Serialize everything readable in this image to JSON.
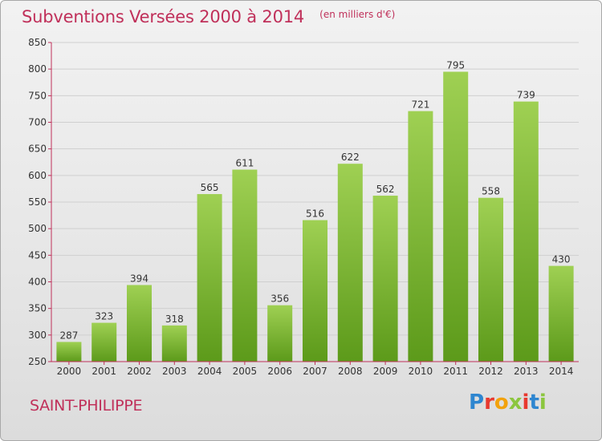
{
  "title": "Subventions Versées 2000 à 2014",
  "subtitle": "(en milliers d'€)",
  "commune": "SAINT-PHILIPPE",
  "logo": {
    "text": "Proxiti",
    "letter_colors": [
      "#2e86d0",
      "#e8392f",
      "#f2a20c",
      "#8cc63f",
      "#e8392f",
      "#2e86d0",
      "#8cc63f"
    ]
  },
  "colors": {
    "bar_top": "#9fd053",
    "bar_bottom": "#5c9a1a",
    "axis": "#c0305a",
    "title": "#c0305a"
  },
  "chart_data": {
    "type": "bar",
    "title": "Subventions Versées 2000 à 2014",
    "subtitle": "(en milliers d'€)",
    "categories": [
      "2000",
      "2001",
      "2002",
      "2003",
      "2004",
      "2005",
      "2006",
      "2007",
      "2008",
      "2009",
      "2010",
      "2011",
      "2012",
      "2013",
      "2014"
    ],
    "values": [
      287,
      323,
      394,
      318,
      565,
      611,
      356,
      516,
      622,
      562,
      721,
      795,
      558,
      739,
      430
    ],
    "ylim": [
      250,
      850
    ],
    "yticks": [
      250,
      300,
      350,
      400,
      450,
      500,
      550,
      600,
      650,
      700,
      750,
      800,
      850
    ],
    "grid": true,
    "legend": "none"
  }
}
